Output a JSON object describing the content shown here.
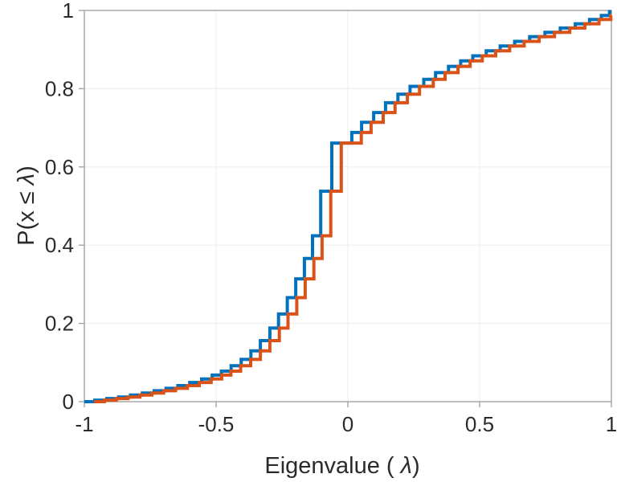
{
  "figure": {
    "title": "",
    "xlabel": {
      "prefix": "Eigenvalue ( ",
      "lambda": "λ",
      "suffix": ")",
      "full": "Eigenvalue ( λ)"
    },
    "ylabel": {
      "prefix": "P(x ",
      "leq": "≤ ",
      "lambda": "λ",
      "suffix": ")",
      "full": "P(x ≤ λ)"
    },
    "colors": {
      "series1": "#0072BD",
      "series2": "#D95319",
      "axis": "#a3a3a3",
      "grid": "#efefef",
      "text": "#2b2b2b"
    }
  },
  "chart_data": {
    "type": "line",
    "subtype": "stairs-cdf",
    "title": "",
    "xlabel": "Eigenvalue ( λ)",
    "ylabel": "P(x ≤ λ)",
    "xlim": [
      -1,
      1
    ],
    "ylim": [
      0,
      1
    ],
    "xticks": [
      -1,
      -0.5,
      0,
      0.5,
      1
    ],
    "xtick_labels": [
      "-1",
      "-0.5",
      "0",
      "0.5",
      "1"
    ],
    "yticks": [
      0,
      0.2,
      0.4,
      0.6,
      0.8,
      1
    ],
    "ytick_labels": [
      "0",
      "0.2",
      "0.4",
      "0.6",
      "0.8",
      "1"
    ],
    "grid": true,
    "legend": null,
    "series": [
      {
        "name": "empirical-cdf-blue",
        "color": "#0072BD",
        "start_x": -1.0,
        "end_x": 1.0,
        "steps": [
          [
            -0.96,
            0.004
          ],
          [
            -0.915,
            0.008
          ],
          [
            -0.87,
            0.012
          ],
          [
            -0.825,
            0.017
          ],
          [
            -0.78,
            0.022
          ],
          [
            -0.735,
            0.028
          ],
          [
            -0.69,
            0.034
          ],
          [
            -0.645,
            0.041
          ],
          [
            -0.6,
            0.049
          ],
          [
            -0.555,
            0.058
          ],
          [
            -0.515,
            0.068
          ],
          [
            -0.48,
            0.078
          ],
          [
            -0.443,
            0.092
          ],
          [
            -0.405,
            0.108
          ],
          [
            -0.368,
            0.13
          ],
          [
            -0.332,
            0.156
          ],
          [
            -0.296,
            0.188
          ],
          [
            -0.263,
            0.224
          ],
          [
            -0.23,
            0.266
          ],
          [
            -0.198,
            0.314
          ],
          [
            -0.165,
            0.366
          ],
          [
            -0.134,
            0.424
          ],
          [
            -0.103,
            0.538
          ],
          [
            -0.061,
            0.661
          ],
          [
            0.015,
            0.688
          ],
          [
            0.052,
            0.714
          ],
          [
            0.098,
            0.739
          ],
          [
            0.143,
            0.764
          ],
          [
            0.19,
            0.786
          ],
          [
            0.236,
            0.806
          ],
          [
            0.288,
            0.824
          ],
          [
            0.333,
            0.841
          ],
          [
            0.382,
            0.857
          ],
          [
            0.428,
            0.871
          ],
          [
            0.474,
            0.884
          ],
          [
            0.525,
            0.897
          ],
          [
            0.578,
            0.909
          ],
          [
            0.633,
            0.921
          ],
          [
            0.69,
            0.933
          ],
          [
            0.748,
            0.944
          ],
          [
            0.806,
            0.955
          ],
          [
            0.863,
            0.966
          ],
          [
            0.917,
            0.977
          ],
          [
            0.962,
            0.987
          ],
          [
            0.993,
            0.997
          ]
        ]
      },
      {
        "name": "empirical-cdf-orange",
        "color": "#D95319",
        "start_x": -0.964,
        "end_x": 1.0,
        "steps": [
          [
            -0.924,
            0.004
          ],
          [
            -0.879,
            0.008
          ],
          [
            -0.834,
            0.012
          ],
          [
            -0.789,
            0.017
          ],
          [
            -0.744,
            0.022
          ],
          [
            -0.699,
            0.028
          ],
          [
            -0.654,
            0.034
          ],
          [
            -0.609,
            0.041
          ],
          [
            -0.564,
            0.049
          ],
          [
            -0.519,
            0.058
          ],
          [
            -0.479,
            0.068
          ],
          [
            -0.444,
            0.078
          ],
          [
            -0.407,
            0.092
          ],
          [
            -0.369,
            0.108
          ],
          [
            -0.332,
            0.13
          ],
          [
            -0.296,
            0.156
          ],
          [
            -0.26,
            0.188
          ],
          [
            -0.227,
            0.224
          ],
          [
            -0.194,
            0.266
          ],
          [
            -0.162,
            0.314
          ],
          [
            -0.129,
            0.366
          ],
          [
            -0.098,
            0.424
          ],
          [
            -0.065,
            0.538
          ],
          [
            -0.025,
            0.661
          ],
          [
            0.051,
            0.688
          ],
          [
            0.088,
            0.714
          ],
          [
            0.134,
            0.739
          ],
          [
            0.179,
            0.764
          ],
          [
            0.226,
            0.786
          ],
          [
            0.272,
            0.806
          ],
          [
            0.324,
            0.824
          ],
          [
            0.369,
            0.841
          ],
          [
            0.418,
            0.857
          ],
          [
            0.464,
            0.871
          ],
          [
            0.51,
            0.884
          ],
          [
            0.561,
            0.897
          ],
          [
            0.614,
            0.909
          ],
          [
            0.669,
            0.921
          ],
          [
            0.726,
            0.933
          ],
          [
            0.784,
            0.944
          ],
          [
            0.842,
            0.955
          ],
          [
            0.899,
            0.966
          ],
          [
            0.953,
            0.977
          ],
          [
            0.998,
            0.987
          ]
        ]
      }
    ]
  }
}
